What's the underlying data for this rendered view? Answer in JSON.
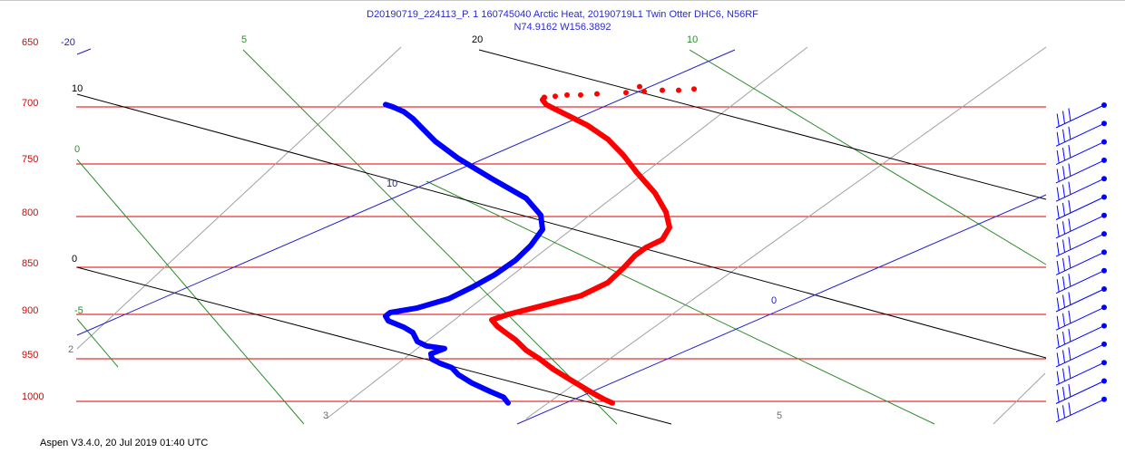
{
  "header": {
    "line1": "D20190719_224113_P. 1 160745040 Arctic Heat, 20190719L1 Twin Otter DHC6, N56RF",
    "line2": "N74.9162 W156.3892"
  },
  "footer": {
    "text": "Aspen V3.4.0, 20 Jul 2019  01:40 UTC"
  },
  "chart_data": {
    "type": "line",
    "subtype": "skew-T log-P sounding",
    "pressure_levels": [
      "650",
      "700",
      "750",
      "800",
      "850",
      "900",
      "950",
      "1000"
    ],
    "pressure_values": [
      650,
      700,
      750,
      800,
      850,
      900,
      950,
      1000
    ],
    "ylim": [
      650,
      1000
    ],
    "y_scale": "log",
    "isotherm_labels": [
      "-20",
      "10",
      "0",
      "20",
      "10"
    ],
    "dry_adiabat_labels": [
      "10",
      "0",
      "20"
    ],
    "moist_adiabat_labels": [
      "0",
      "-5",
      "5",
      "10"
    ],
    "mixing_ratio_labels": [
      "2",
      "3",
      "5"
    ],
    "colors": {
      "temperature": "#ff0000",
      "dewpoint": "#0000ff",
      "isobar": "#e00000",
      "isotherm": "#2020c8",
      "dry_adiabat": "#000000",
      "moist_adiabat": "#2e8b2e",
      "mixing_ratio": "#a0a0a0",
      "pressure_label": "#e00000"
    },
    "series": [
      {
        "role": "temperature",
        "color": "#ff0000",
        "points": [
          [
            675,
            1002
          ],
          [
            665,
            997
          ],
          [
            650,
            988
          ],
          [
            630,
            975
          ],
          [
            610,
            962
          ],
          [
            595,
            950
          ],
          [
            580,
            940
          ],
          [
            568,
            928
          ],
          [
            557,
            920
          ],
          [
            548,
            913
          ],
          [
            542,
            906
          ],
          [
            560,
            900
          ],
          [
            600,
            890
          ],
          [
            640,
            880
          ],
          [
            670,
            866
          ],
          [
            688,
            850
          ],
          [
            700,
            838
          ],
          [
            712,
            830
          ],
          [
            730,
            822
          ],
          [
            738,
            810
          ],
          [
            734,
            795
          ],
          [
            722,
            777
          ],
          [
            702,
            758
          ],
          [
            687,
            742
          ],
          [
            670,
            728
          ],
          [
            648,
            716
          ],
          [
            628,
            708
          ],
          [
            612,
            702
          ],
          [
            602,
            698
          ],
          [
            598,
            694
          ],
          [
            600,
            692
          ]
        ],
        "dotted_points": [
          [
            600,
            692
          ],
          [
            612,
            691
          ],
          [
            625,
            690
          ],
          [
            640,
            690
          ],
          [
            658,
            689
          ],
          [
            690,
            688
          ],
          [
            710,
            687
          ],
          [
            730,
            686
          ],
          [
            748,
            686
          ],
          [
            765,
            685
          ],
          [
            705,
            683
          ]
        ]
      },
      {
        "role": "dewpoint",
        "color": "#0000ff",
        "points": [
          [
            560,
            1002
          ],
          [
            555,
            995
          ],
          [
            540,
            988
          ],
          [
            520,
            978
          ],
          [
            505,
            968
          ],
          [
            498,
            960
          ],
          [
            485,
            955
          ],
          [
            476,
            950
          ],
          [
            475,
            944
          ],
          [
            490,
            938
          ],
          [
            470,
            935
          ],
          [
            460,
            930
          ],
          [
            455,
            920
          ],
          [
            445,
            914
          ],
          [
            428,
            907
          ],
          [
            425,
            902
          ],
          [
            430,
            898
          ],
          [
            460,
            893
          ],
          [
            495,
            883
          ],
          [
            520,
            871
          ],
          [
            545,
            858
          ],
          [
            568,
            843
          ],
          [
            585,
            828
          ],
          [
            598,
            812
          ],
          [
            596,
            798
          ],
          [
            580,
            782
          ],
          [
            545,
            765
          ],
          [
            505,
            745
          ],
          [
            480,
            730
          ],
          [
            465,
            718
          ],
          [
            455,
            710
          ],
          [
            445,
            704
          ],
          [
            433,
            700
          ],
          [
            425,
            698
          ]
        ]
      }
    ]
  },
  "wind_barbs": {
    "count": 17,
    "color": "#0000ff"
  }
}
